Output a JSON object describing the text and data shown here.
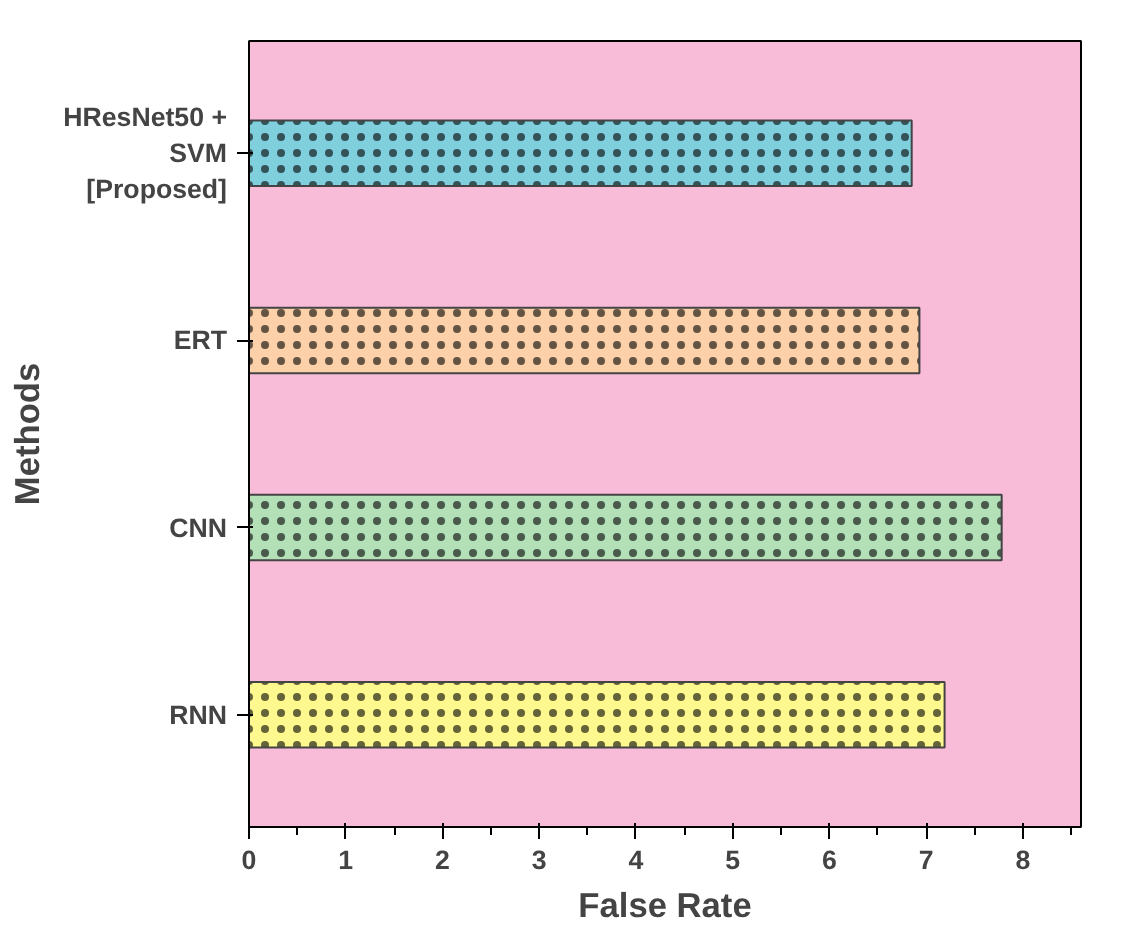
{
  "chart_data": {
    "type": "bar",
    "orientation": "horizontal",
    "xlabel": "False Rate",
    "ylabel": "Methods",
    "categories": [
      "HResNet50 +\nSVM\n[Proposed]",
      "ERT",
      "CNN",
      "RNN"
    ],
    "values": [
      6.85,
      6.93,
      7.78,
      7.19
    ],
    "colors": [
      "#7fd0dc",
      "#fcd0a8",
      "#b4e0b8",
      "#fdf98e"
    ],
    "xlim": [
      0,
      8.6
    ],
    "xticks": [
      0,
      1,
      2,
      3,
      4,
      5,
      6,
      7,
      8
    ],
    "grid": false
  }
}
